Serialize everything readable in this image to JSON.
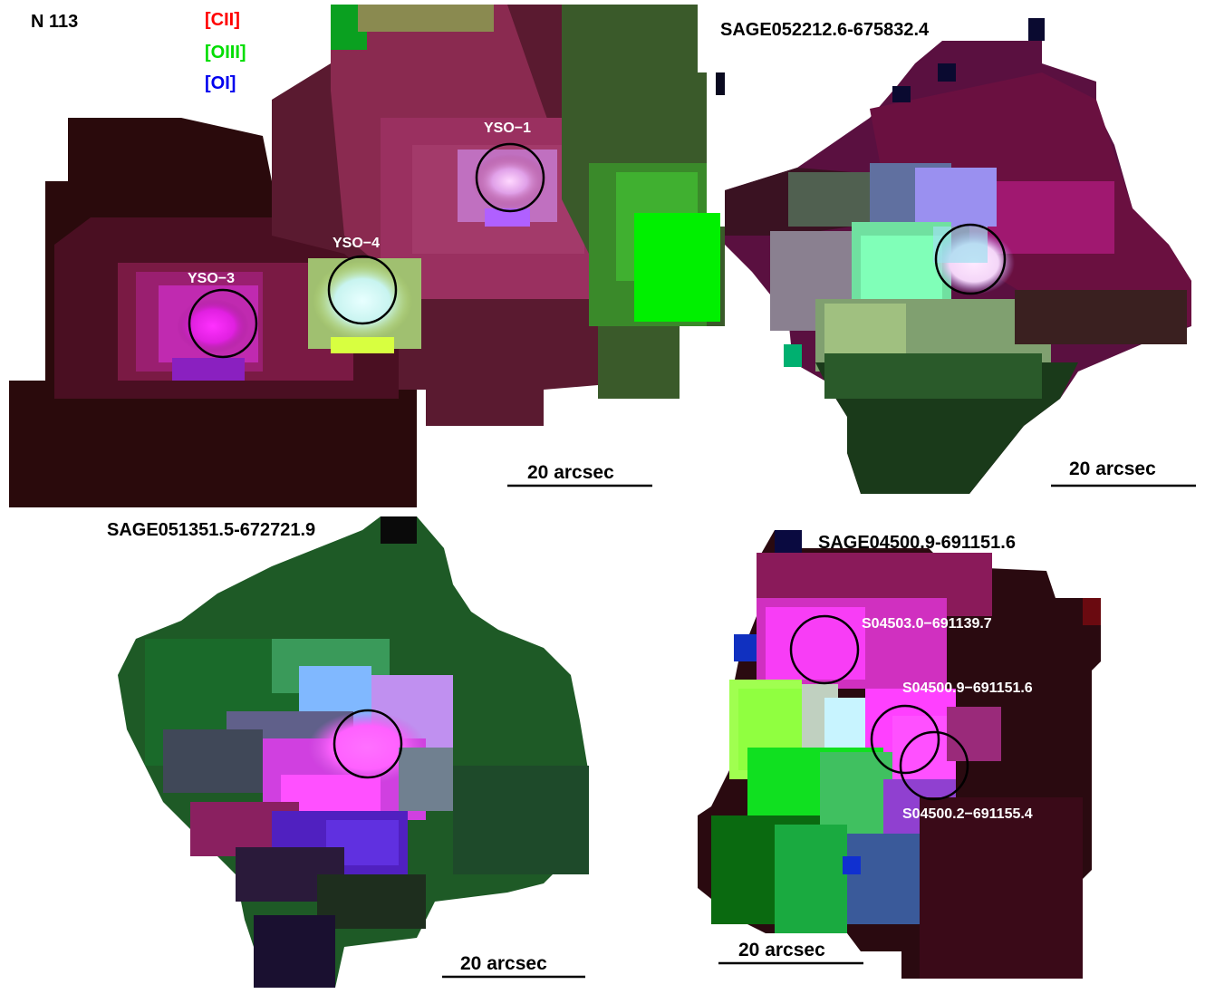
{
  "figure": {
    "panels": [
      {
        "id": "n113",
        "label": "N 113",
        "legend": [
          {
            "text": "[CII]",
            "color": "#ff0000"
          },
          {
            "text": "[OIII]",
            "color": "#00dd00"
          },
          {
            "text": "[OI]",
            "color": "#0000ee"
          }
        ],
        "sources": [
          "YSO−1",
          "YSO−4",
          "YSO−3"
        ],
        "scale_bar": "20 arcsec"
      },
      {
        "id": "sage052212",
        "label": "SAGE052212.6-675832.4",
        "scale_bar": "20 arcsec"
      },
      {
        "id": "sage051351",
        "label": "SAGE051351.5-672721.9",
        "scale_bar": "20 arcsec"
      },
      {
        "id": "sage04500",
        "label": "SAGE04500.9-691151.6",
        "sources": [
          "S04503.0−691139.7",
          "S04500.9−691151.6",
          "S04500.2−691155.4"
        ],
        "scale_bar": "20 arcsec"
      }
    ]
  }
}
